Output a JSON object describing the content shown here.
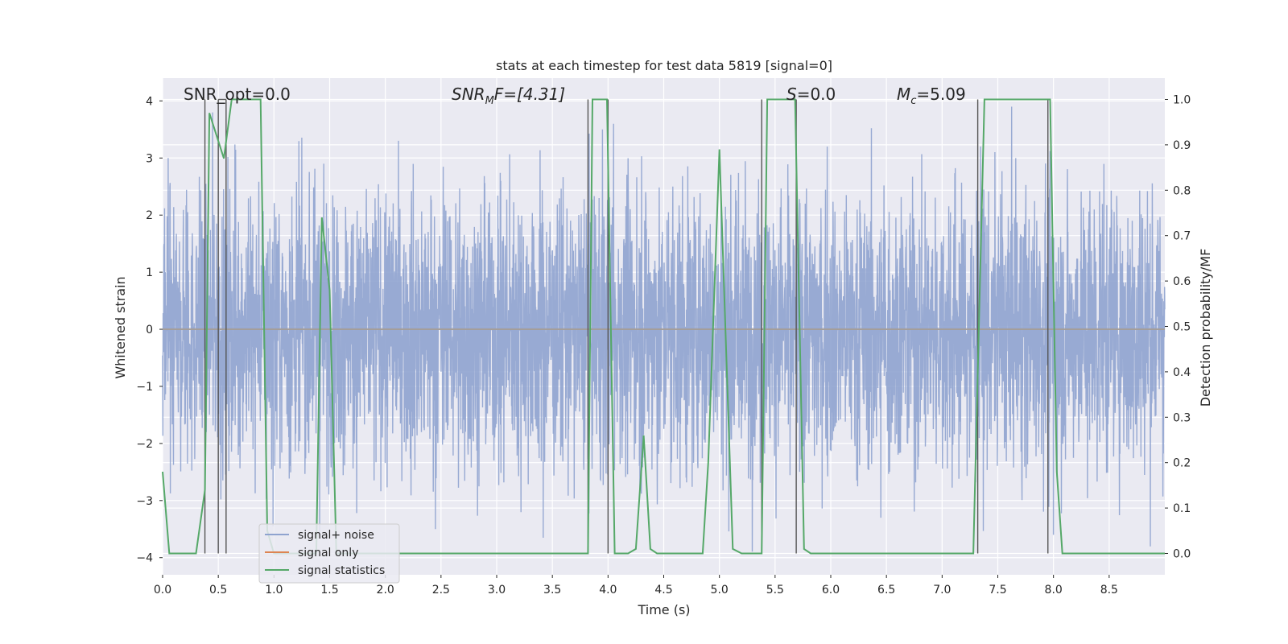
{
  "chart_data": {
    "type": "line",
    "title": "stats at each timestep for test data 5819 [signal=0]",
    "xlabel": "Time (s)",
    "ylabel": "Whitened strain",
    "ylabel_right": "Detection probability/MF",
    "xlim": [
      0.0,
      9.0
    ],
    "ylim": [
      -4.3,
      4.4
    ],
    "ylim_right": [
      -0.047,
      1.047
    ],
    "x_ticks": [
      "0.0",
      "0.5",
      "1.0",
      "1.5",
      "2.0",
      "2.5",
      "3.0",
      "3.5",
      "4.0",
      "4.5",
      "5.0",
      "5.5",
      "6.0",
      "6.5",
      "7.0",
      "7.5",
      "8.0",
      "8.5"
    ],
    "x_tick_values": [
      0.0,
      0.5,
      1.0,
      1.5,
      2.0,
      2.5,
      3.0,
      3.5,
      4.0,
      4.5,
      5.0,
      5.5,
      6.0,
      6.5,
      7.0,
      7.5,
      8.0,
      8.5
    ],
    "y_ticks": [
      "−4",
      "−3",
      "−2",
      "−1",
      "0",
      "1",
      "2",
      "3",
      "4"
    ],
    "y_tick_values": [
      -4,
      -3,
      -2,
      -1,
      0,
      1,
      2,
      3,
      4
    ],
    "y_right_ticks": [
      "0.0",
      "0.1",
      "0.2",
      "0.3",
      "0.4",
      "0.5",
      "0.6",
      "0.7",
      "0.8",
      "0.9",
      "1.0"
    ],
    "y_right_tick_values": [
      0.0,
      0.1,
      0.2,
      0.3,
      0.4,
      0.5,
      0.6,
      0.7,
      0.8,
      0.9,
      1.0
    ],
    "grid": true,
    "legend_position": "lower-left",
    "annotations": {
      "snr_opt": "SNR_opt=0.0",
      "snr_mf_base": "SNR",
      "snr_mf_sub": "M",
      "snr_mf_rest": "F=[4.31]",
      "s_base": "S",
      "s_rest": "=0.0",
      "mc_base": "M",
      "mc_sub": "c",
      "mc_rest": "=5.09"
    },
    "series": [
      {
        "name": "signal+ noise",
        "color": "#8fa3cf",
        "kind": "noise",
        "amplitude_typical": 1.6,
        "amplitude_peak": 3.9,
        "samples_per_second": 512,
        "notable_peaks": [
          [
            0.05,
            3.0
          ],
          [
            0.45,
            3.8
          ],
          [
            2.45,
            -3.9
          ],
          [
            2.45,
            -3.5
          ],
          [
            3.95,
            3.5
          ],
          [
            4.05,
            3.6
          ],
          [
            6.45,
            -3.3
          ],
          [
            8.0,
            -3.6
          ]
        ]
      },
      {
        "name": "signal only",
        "color": "#dd8452",
        "kind": "line",
        "points": [
          [
            0.0,
            0.0
          ],
          [
            9.0,
            0.0
          ]
        ]
      },
      {
        "name": "signal statistics",
        "color": "#55a868",
        "axis": "right",
        "points": [
          [
            0.0,
            0.18
          ],
          [
            0.06,
            0.0
          ],
          [
            0.3,
            0.0
          ],
          [
            0.38,
            0.14
          ],
          [
            0.42,
            0.97
          ],
          [
            0.55,
            0.87
          ],
          [
            0.62,
            1.0
          ],
          [
            0.88,
            1.0
          ],
          [
            0.94,
            0.05
          ],
          [
            1.0,
            0.0
          ],
          [
            1.38,
            0.0
          ],
          [
            1.43,
            0.74
          ],
          [
            1.5,
            0.58
          ],
          [
            1.56,
            0.0
          ],
          [
            3.82,
            0.0
          ],
          [
            3.86,
            1.0
          ],
          [
            3.99,
            1.0
          ],
          [
            4.06,
            0.0
          ],
          [
            4.18,
            0.0
          ],
          [
            4.25,
            0.01
          ],
          [
            4.32,
            0.26
          ],
          [
            4.38,
            0.01
          ],
          [
            4.44,
            0.0
          ],
          [
            4.85,
            0.0
          ],
          [
            4.9,
            0.2
          ],
          [
            5.0,
            0.89
          ],
          [
            5.12,
            0.01
          ],
          [
            5.2,
            0.0
          ],
          [
            5.38,
            0.0
          ],
          [
            5.43,
            1.0
          ],
          [
            5.68,
            1.0
          ],
          [
            5.76,
            0.01
          ],
          [
            5.82,
            0.0
          ],
          [
            7.28,
            0.0
          ],
          [
            7.38,
            1.0
          ],
          [
            7.97,
            1.0
          ],
          [
            8.03,
            0.18
          ],
          [
            8.08,
            0.0
          ],
          [
            9.0,
            0.0
          ]
        ]
      }
    ],
    "vertical_markers": [
      0.38,
      0.5,
      0.57,
      3.82,
      4.0,
      5.38,
      5.69,
      7.32,
      7.95
    ]
  }
}
